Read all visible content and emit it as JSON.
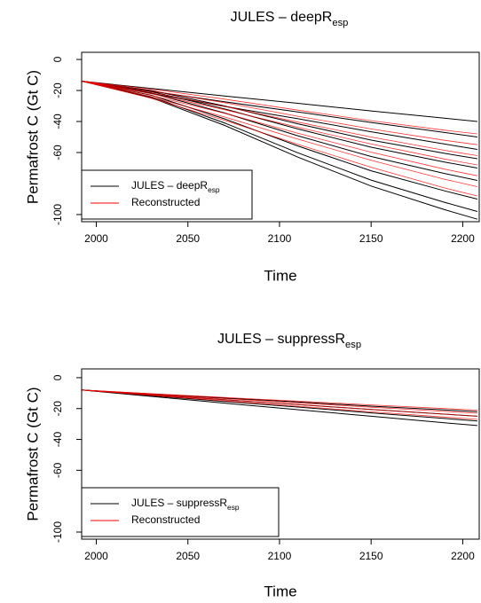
{
  "chart_data": [
    {
      "type": "line",
      "title": "JULES – deepR",
      "title_subscript": "esp",
      "x_label": "Time",
      "y_label": "Permafrost C (Gt C)",
      "x": [
        1992,
        2030,
        2070,
        2110,
        2150,
        2190,
        2208
      ],
      "xlim": [
        1992,
        2209
      ],
      "xticks": [
        2000,
        2050,
        2100,
        2150,
        2200
      ],
      "ylim": [
        -104.6,
        4.6
      ],
      "yticks": [
        0,
        -20,
        -40,
        -60,
        -100
      ],
      "legend": "lower left",
      "series": [
        {
          "name": "JULES – deepR",
          "name_subscript": "esp",
          "color": "#000000",
          "lines": [
            [
              -14,
              -18.7,
              -23.6,
              -28.3,
              -33.2,
              -37.9,
              -40
            ],
            [
              -14,
              -20.5,
              -27.3,
              -33.8,
              -40.6,
              -47.1,
              -50
            ],
            [
              -14,
              -21.9,
              -30.3,
              -38.2,
              -46.6,
              -54.5,
              -58
            ],
            [
              -14,
              -20,
              -30,
              -41.5,
              -52,
              -60.5,
              -64
            ],
            [
              -14,
              -20.7,
              -31.9,
              -44.8,
              -56.6,
              -66.1,
              -70
            ],
            [
              -14,
              -21.7,
              -34.5,
              -49.2,
              -62.6,
              -73.5,
              -78
            ],
            [
              -14,
              -23.1,
              -38.3,
              -55.8,
              -71.8,
              -84.7,
              -90
            ],
            [
              -14,
              -24.1,
              -40.9,
              -60.2,
              -77.8,
              -92.1,
              -98
            ],
            [
              -14,
              -24.7,
              -42.5,
              -63,
              -81.6,
              -96.8,
              -103
            ]
          ]
        },
        {
          "name": "Reconstructed",
          "color": "#ff0000",
          "lines": [
            [
              -14,
              -19.1,
              -25.6,
              -32.7,
              -39.5,
              -45.6,
              -48
            ],
            [
              -14,
              -20.2,
              -27.9,
              -36.6,
              -44.8,
              -52.1,
              -55
            ],
            [
              -14,
              -21.2,
              -30.3,
              -40.4,
              -50,
              -58.6,
              -62
            ],
            [
              -14,
              -22.1,
              -32.4,
              -43.7,
              -54.5,
              -64.2,
              -68
            ],
            [
              -14,
              -23.2,
              -34.7,
              -47.6,
              -59.8,
              -70.7,
              -75
            ],
            [
              -14,
              -24.2,
              -37.1,
              -51.4,
              -65,
              -77.2,
              -82
            ],
            [
              -14,
              -25.1,
              -39.2,
              -54.7,
              -69.5,
              -82.8,
              -88
            ]
          ]
        }
      ]
    },
    {
      "type": "line",
      "title": "JULES – suppressR",
      "title_subscript": "esp",
      "x_label": "Time",
      "y_label": "Permafrost C (Gt C)",
      "x": [
        1992,
        2030,
        2070,
        2110,
        2150,
        2190,
        2208
      ],
      "xlim": [
        1992,
        2209
      ],
      "xticks": [
        2000,
        2050,
        2100,
        2150,
        2200
      ],
      "ylim": [
        -104.6,
        5.7
      ],
      "yticks": [
        0,
        -20,
        -40,
        -60,
        -100
      ],
      "legend": "lower left",
      "series": [
        {
          "name": "JULES – suppressR",
          "name_subscript": "esp",
          "color": "#000000",
          "lines": [
            [
              -8,
              -10.5,
              -13.2,
              -15.7,
              -18.4,
              -20.9,
              -22
            ],
            [
              -8,
              -11.1,
              -14.3,
              -17.4,
              -20.6,
              -23.6,
              -25
            ],
            [
              -8,
              -11.6,
              -15.4,
              -19,
              -22.8,
              -26.4,
              -28
            ],
            [
              -8,
              -12.1,
              -16.5,
              -20.7,
              -25,
              -29.2,
              -31
            ]
          ]
        },
        {
          "name": "Reconstructed",
          "color": "#ff0000",
          "lines": [
            [
              -8,
              -10.3,
              -12.8,
              -15.2,
              -17.6,
              -20,
              -21
            ],
            [
              -8,
              -10.7,
              -13.6,
              -16.3,
              -19.1,
              -21.8,
              -23
            ],
            [
              -8,
              -11.1,
              -14.3,
              -17.4,
              -20.6,
              -23.6,
              -25
            ],
            [
              -8,
              -11.4,
              -15,
              -18.5,
              -22.1,
              -25.5,
              -27
            ]
          ]
        }
      ]
    }
  ]
}
